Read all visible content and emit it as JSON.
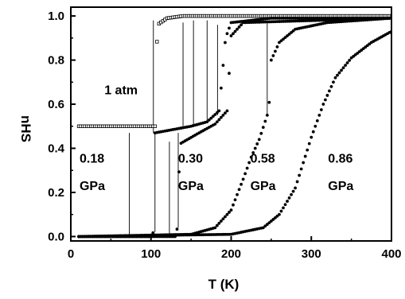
{
  "chart_data": {
    "type": "scatter",
    "xlabel": "T (K)",
    "ylabel": "nHS",
    "xlim": [
      0,
      400
    ],
    "ylim": [
      -0.02,
      1.04
    ],
    "x_ticks": [
      0,
      100,
      200,
      300,
      400
    ],
    "y_ticks": [
      0.0,
      0.2,
      0.4,
      0.6,
      0.8,
      1.0
    ],
    "x_tick_labels": [
      "0",
      "100",
      "200",
      "300",
      "400"
    ],
    "y_tick_labels": [
      "0.0",
      "0.2",
      "0.4",
      "0.6",
      "0.8",
      "1.0"
    ],
    "grid": false,
    "annotations": [
      {
        "id": "1atm",
        "lines": [
          "1 atm"
        ]
      },
      {
        "id": "p018",
        "lines": [
          "0.18",
          "GPa"
        ]
      },
      {
        "id": "p030",
        "lines": [
          "0.30",
          "GPa"
        ]
      },
      {
        "id": "p058",
        "lines": [
          "0.58",
          "GPa"
        ]
      },
      {
        "id": "p086",
        "lines": [
          "0.86",
          "GPa"
        ]
      }
    ],
    "series": [
      {
        "marker": "open-square",
        "description_points": [
          [
            10,
            0.5
          ],
          [
            100,
            0.5
          ],
          [
            105,
            0.5
          ],
          [
            108,
            0.96
          ],
          [
            120,
            0.99
          ],
          [
            140,
            1.0
          ],
          [
            400,
            1.0
          ]
        ]
      },
      {
        "marker": "filled-circle",
        "description_points": [
          [
            10,
            0.0
          ],
          [
            100,
            0.0
          ],
          [
            103,
            0.02
          ],
          [
            105,
            0.47
          ],
          [
            150,
            0.5
          ],
          [
            170,
            0.52
          ],
          [
            185,
            0.57
          ],
          [
            193,
            0.9
          ],
          [
            200,
            0.97
          ],
          [
            250,
            0.99
          ],
          [
            400,
            0.99
          ]
        ]
      },
      {
        "marker": "filled-circle",
        "description_points": [
          [
            10,
            0.0
          ],
          [
            130,
            0.0
          ],
          [
            133,
            0.04
          ],
          [
            136,
            0.42
          ],
          [
            160,
            0.47
          ],
          [
            180,
            0.51
          ],
          [
            195,
            0.57
          ],
          [
            200,
            0.91
          ],
          [
            215,
            0.97
          ],
          [
            400,
            0.99
          ]
        ]
      },
      {
        "marker": "filled-circle",
        "description_points": [
          [
            10,
            0.0
          ],
          [
            150,
            0.01
          ],
          [
            180,
            0.04
          ],
          [
            200,
            0.12
          ],
          [
            215,
            0.26
          ],
          [
            225,
            0.36
          ],
          [
            235,
            0.44
          ],
          [
            245,
            0.55
          ],
          [
            248,
            0.62
          ],
          [
            250,
            0.8
          ],
          [
            260,
            0.88
          ],
          [
            280,
            0.94
          ],
          [
            320,
            0.97
          ],
          [
            400,
            0.99
          ]
        ]
      },
      {
        "marker": "filled-circle",
        "description_points": [
          [
            10,
            0.0
          ],
          [
            200,
            0.01
          ],
          [
            240,
            0.04
          ],
          [
            260,
            0.1
          ],
          [
            280,
            0.22
          ],
          [
            300,
            0.45
          ],
          [
            315,
            0.6
          ],
          [
            330,
            0.72
          ],
          [
            350,
            0.81
          ],
          [
            375,
            0.88
          ],
          [
            400,
            0.93
          ]
        ]
      }
    ],
    "hysteresis_lines": [
      {
        "x": [
          73,
          73
        ],
        "y": [
          0.0,
          0.47
        ]
      },
      {
        "x": [
          103,
          103
        ],
        "y": [
          0.47,
          0.98
        ]
      },
      {
        "x": [
          105,
          105
        ],
        "y": [
          0.02,
          0.47
        ]
      },
      {
        "x": [
          123,
          123
        ],
        "y": [
          0.0,
          0.43
        ]
      },
      {
        "x": [
          134,
          134
        ],
        "y": [
          0.04,
          0.47
        ]
      },
      {
        "x": [
          140,
          140
        ],
        "y": [
          0.5,
          0.97
        ]
      },
      {
        "x": [
          153,
          153
        ],
        "y": [
          0.5,
          0.98
        ]
      },
      {
        "x": [
          170,
          170
        ],
        "y": [
          0.52,
          0.98
        ]
      },
      {
        "x": [
          183,
          183
        ],
        "y": [
          0.55,
          0.96
        ]
      },
      {
        "x": [
          245,
          245
        ],
        "y": [
          0.55,
          0.97
        ]
      }
    ]
  }
}
